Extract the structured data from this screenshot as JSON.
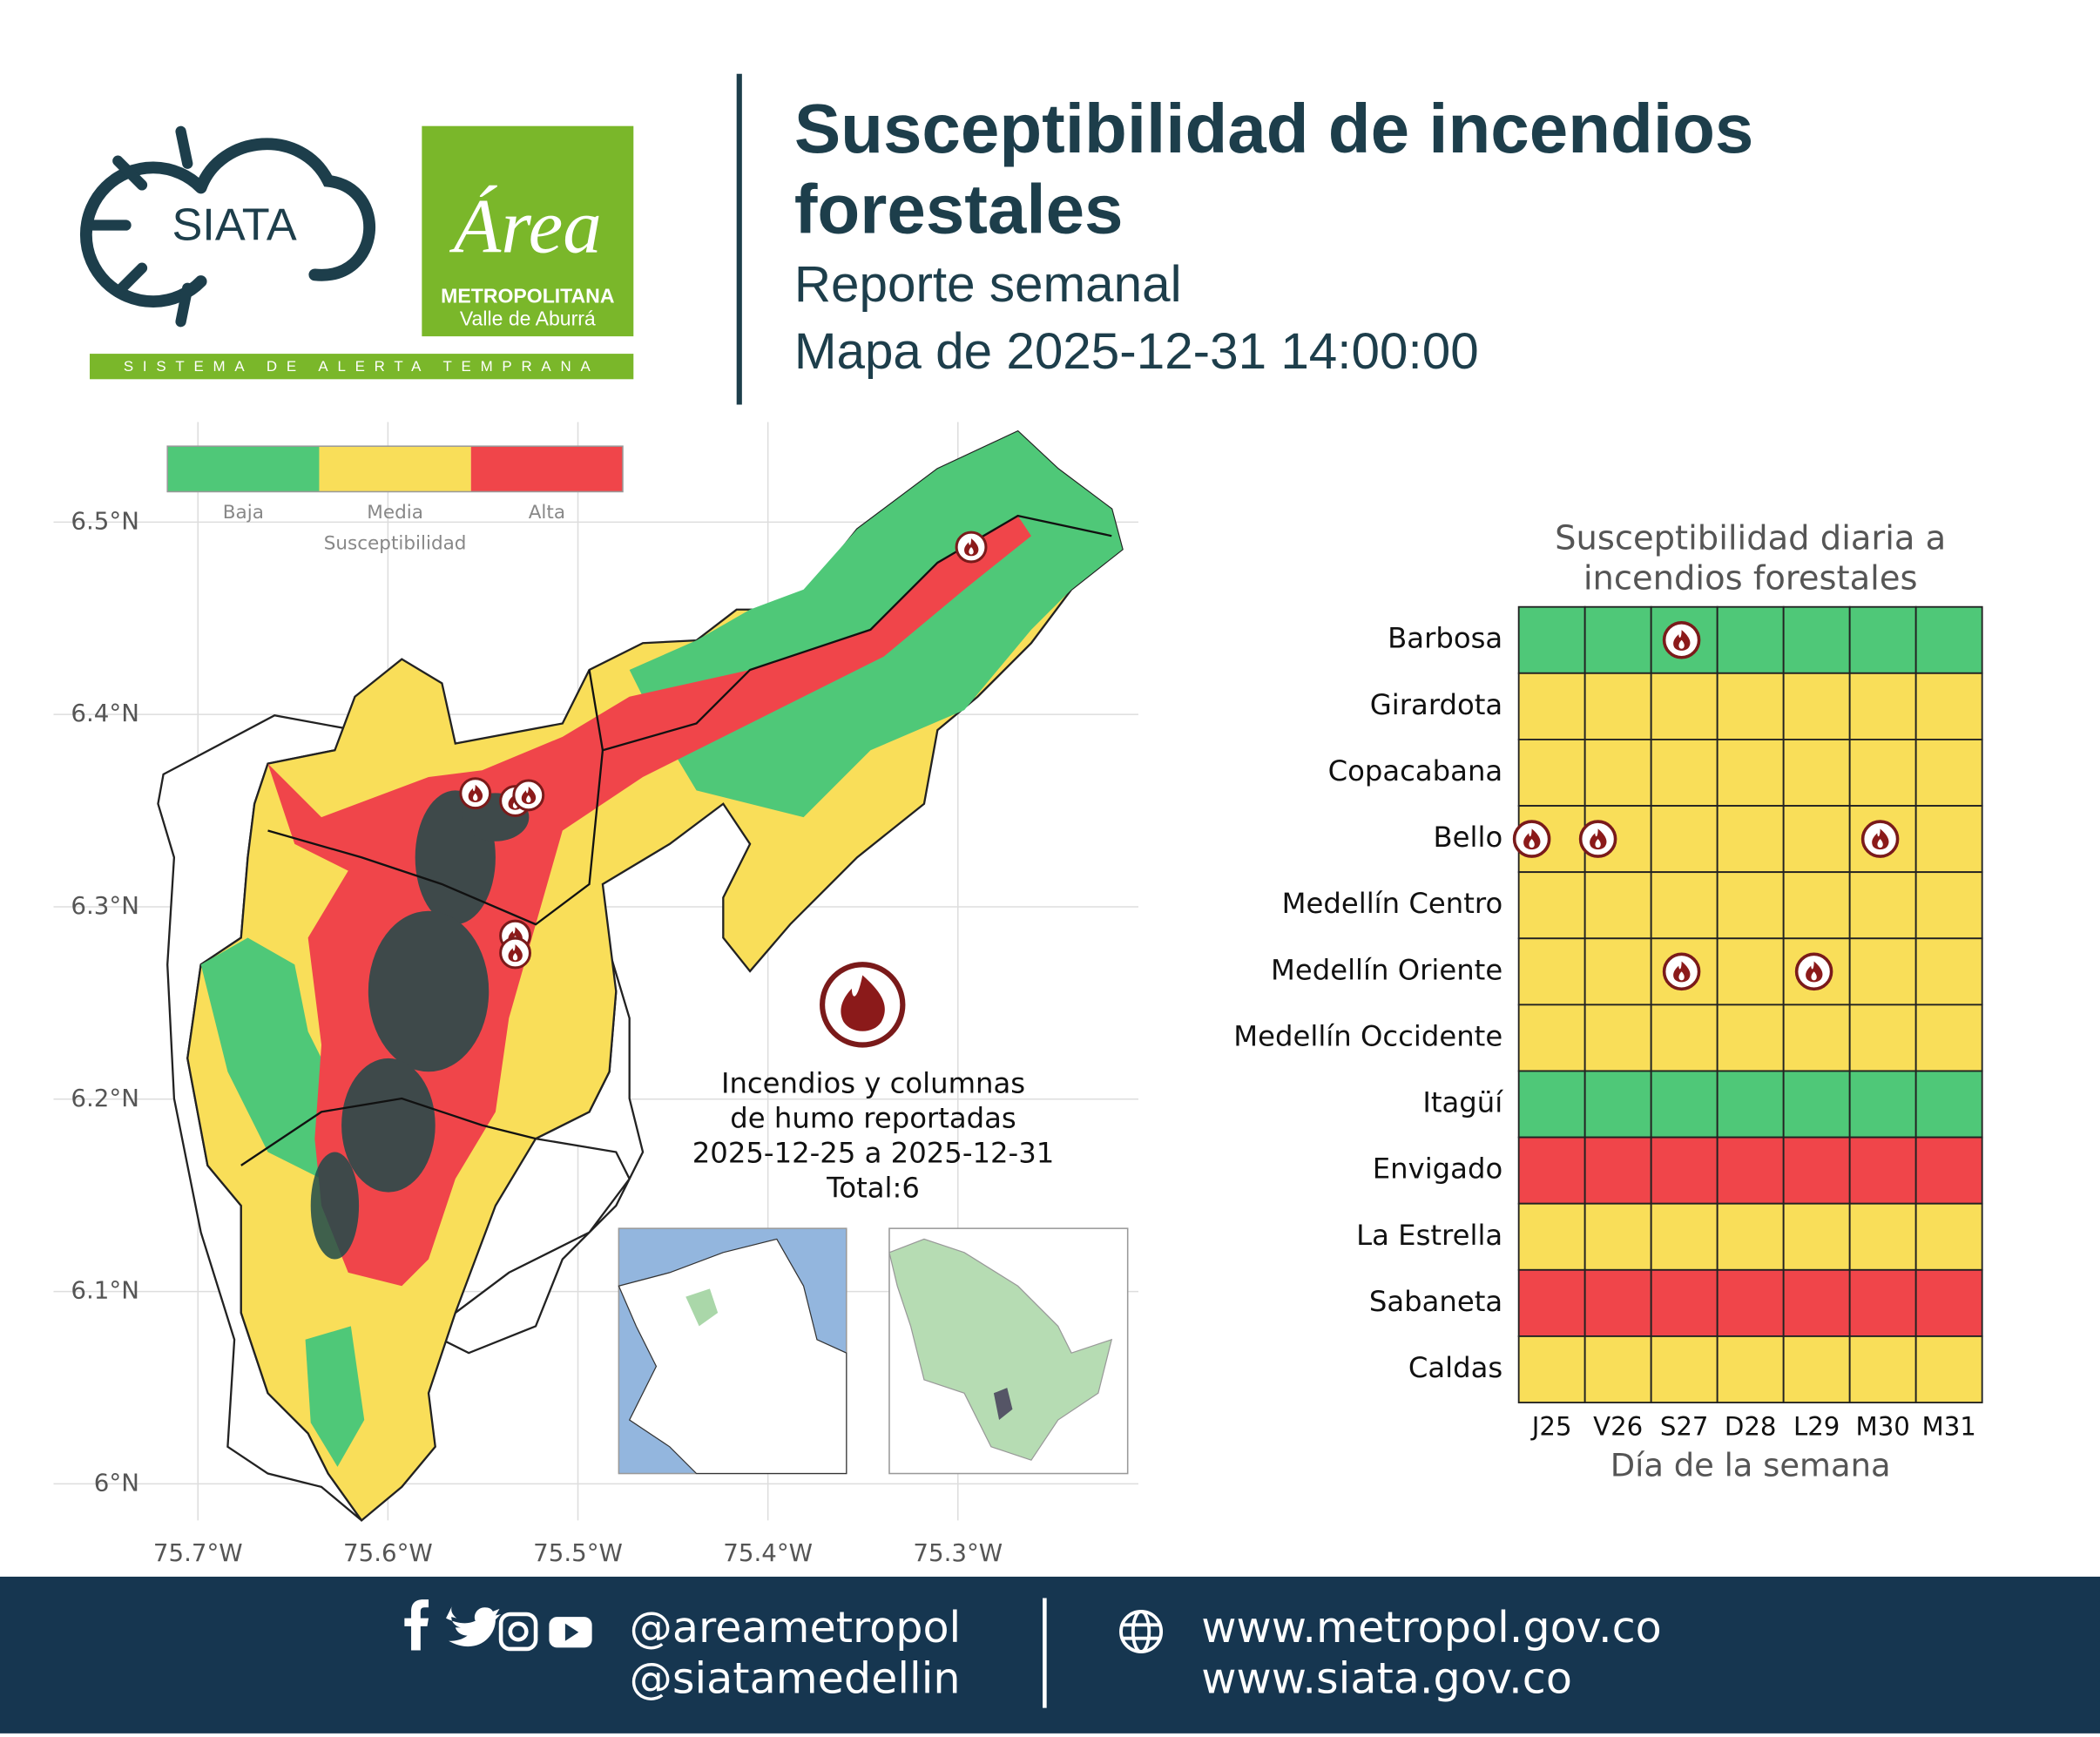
{
  "header": {
    "logo_siata": "SIATA",
    "logo_area": "Área",
    "logo_metropolitana": "METROPOLITANA",
    "logo_valle": "Valle de Aburrá",
    "logo_strip": "SISTEMA DE ALERTA TEMPRANA",
    "title": [
      "Susceptibilidad de incendios",
      "forestales"
    ],
    "subtitle": "Reporte semanal",
    "map_date": "Mapa de 2025-12-31 14:00:00"
  },
  "chart_data": [
    {
      "type": "map",
      "legend_title": "Susceptibilidad",
      "levels": [
        {
          "name": "Baja",
          "color": "#4fc878"
        },
        {
          "name": "Media",
          "color": "#f9de59"
        },
        {
          "name": "Alta",
          "color": "#f0454a"
        }
      ],
      "xlim": [
        -75.776,
        -75.205
      ],
      "ylim": [
        5.981,
        6.552
      ],
      "xticks": [
        {
          "value": -75.7,
          "label": "75.7°W"
        },
        {
          "value": -75.6,
          "label": "75.6°W"
        },
        {
          "value": -75.5,
          "label": "75.5°W"
        },
        {
          "value": -75.4,
          "label": "75.4°W"
        },
        {
          "value": -75.3,
          "label": "75.3°W"
        }
      ],
      "yticks": [
        {
          "value": 6.0,
          "label": "6°N"
        },
        {
          "value": 6.1,
          "label": "6.1°N"
        },
        {
          "value": 6.2,
          "label": "6.2°N"
        },
        {
          "value": 6.3,
          "label": "6.3°N"
        },
        {
          "value": 6.4,
          "label": "6.4°N"
        },
        {
          "value": 6.5,
          "label": "6.5°N"
        }
      ],
      "grid": true,
      "fires": {
        "lon": [
          -75.293,
          -75.554,
          -75.533,
          -75.526,
          -75.533,
          -75.533
        ],
        "lat": [
          6.487,
          6.359,
          6.355,
          6.358,
          6.285,
          6.276
        ]
      },
      "annotation": [
        "Incendios y columnas",
        "de humo reportadas",
        "2025-12-25 a 2025-12-31",
        "Total:6"
      ]
    },
    {
      "type": "heatmap",
      "title": [
        "Susceptibilidad diaria a",
        "incendios forestales"
      ],
      "x_label": "Día de la semana",
      "categories": [
        "J25",
        "V26",
        "S27",
        "D28",
        "L29",
        "M30",
        "M31"
      ],
      "rows": [
        "Barbosa",
        "Girardota",
        "Copacabana",
        "Bello",
        "Medellín Centro",
        "Medellín Oriente",
        "Medellín Occidente",
        "Itagüí",
        "Envigado",
        "La Estrella",
        "Sabaneta",
        "Caldas"
      ],
      "values": [
        [
          "Baja",
          "Baja",
          "Baja",
          "Baja",
          "Baja",
          "Baja",
          "Baja"
        ],
        [
          "Media",
          "Media",
          "Media",
          "Media",
          "Media",
          "Media",
          "Media"
        ],
        [
          "Media",
          "Media",
          "Media",
          "Media",
          "Media",
          "Media",
          "Media"
        ],
        [
          "Media",
          "Media",
          "Media",
          "Media",
          "Media",
          "Media",
          "Media"
        ],
        [
          "Media",
          "Media",
          "Media",
          "Media",
          "Media",
          "Media",
          "Media"
        ],
        [
          "Media",
          "Media",
          "Media",
          "Media",
          "Media",
          "Media",
          "Media"
        ],
        [
          "Media",
          "Media",
          "Media",
          "Media",
          "Media",
          "Media",
          "Media"
        ],
        [
          "Baja",
          "Baja",
          "Baja",
          "Baja",
          "Baja",
          "Baja",
          "Baja"
        ],
        [
          "Alta",
          "Alta",
          "Alta",
          "Alta",
          "Alta",
          "Alta",
          "Alta"
        ],
        [
          "Media",
          "Media",
          "Media",
          "Media",
          "Media",
          "Media",
          "Media"
        ],
        [
          "Alta",
          "Alta",
          "Alta",
          "Alta",
          "Alta",
          "Alta",
          "Alta"
        ],
        [
          "Media",
          "Media",
          "Media",
          "Media",
          "Media",
          "Media",
          "Media"
        ]
      ],
      "fires": [
        [
          0,
          0,
          1,
          0,
          0,
          0,
          0
        ],
        [
          0,
          0,
          0,
          0,
          0,
          0,
          0
        ],
        [
          0,
          0,
          0,
          0,
          0,
          0,
          0
        ],
        [
          1,
          1,
          0,
          0,
          0,
          1,
          0
        ],
        [
          0,
          0,
          0,
          0,
          0,
          0,
          0
        ],
        [
          0,
          0,
          1,
          0,
          1,
          0,
          0
        ],
        [
          0,
          0,
          0,
          0,
          0,
          0,
          0
        ],
        [
          0,
          0,
          0,
          0,
          0,
          0,
          0
        ],
        [
          0,
          0,
          0,
          0,
          0,
          0,
          0
        ],
        [
          0,
          0,
          0,
          0,
          0,
          0,
          0
        ],
        [
          0,
          0,
          0,
          0,
          0,
          0,
          0
        ],
        [
          0,
          0,
          0,
          0,
          0,
          0,
          0
        ]
      ]
    }
  ],
  "footer": {
    "handles": [
      "@areametropol",
      "@siatamedellin"
    ],
    "urls": [
      "www.metropol.gov.co",
      "www.siata.gov.co"
    ]
  }
}
